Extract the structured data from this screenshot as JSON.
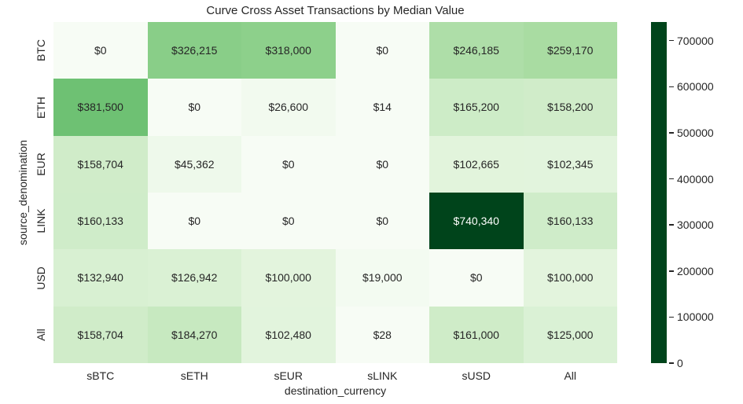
{
  "chart_data": {
    "type": "heatmap",
    "title": "Curve Cross Asset Transactions by Median Value",
    "xlabel": "destination_currency",
    "ylabel": "source_denomination",
    "x_categories": [
      "sBTC",
      "sETH",
      "sEUR",
      "sLINK",
      "sUSD",
      "All"
    ],
    "y_categories": [
      "BTC",
      "ETH",
      "EUR",
      "LINK",
      "USD",
      "All"
    ],
    "values": [
      [
        0,
        326215,
        318000,
        0,
        246185,
        259170
      ],
      [
        381500,
        0,
        26600,
        14,
        165200,
        158200
      ],
      [
        158704,
        45362,
        0,
        0,
        102665,
        102345
      ],
      [
        160133,
        0,
        0,
        0,
        740340,
        160133
      ],
      [
        132940,
        126942,
        100000,
        19000,
        0,
        100000
      ],
      [
        158704,
        184270,
        102480,
        28,
        161000,
        125000
      ]
    ],
    "annotations": [
      [
        "$0",
        "$326,215",
        "$318,000",
        "$0",
        "$246,185",
        "$259,170"
      ],
      [
        "$381,500",
        "$0",
        "$26,600",
        "$14",
        "$165,200",
        "$158,200"
      ],
      [
        "$158,704",
        "$45,362",
        "$0",
        "$0",
        "$102,665",
        "$102,345"
      ],
      [
        "$160,133",
        "$0",
        "$0",
        "$0",
        "$740,340",
        "$160,133"
      ],
      [
        "$132,940",
        "$126,942",
        "$100,000",
        "$19,000",
        "$0",
        "$100,000"
      ],
      [
        "$158,704",
        "$184,270",
        "$102,480",
        "$28",
        "$161,000",
        "$125,000"
      ]
    ],
    "vmin": 0,
    "vmax": 740340,
    "colormap": {
      "name": "Greens",
      "stops": [
        "#f7fcf5",
        "#e5f5e0",
        "#c7e9c0",
        "#a1d99b",
        "#74c476",
        "#41ab5d",
        "#238b45",
        "#006d2c",
        "#00441b"
      ]
    },
    "colorbar": {
      "tick_labels": [
        "0",
        "100000",
        "200000",
        "300000",
        "400000",
        "500000",
        "600000",
        "700000"
      ],
      "tick_values": [
        0,
        100000,
        200000,
        300000,
        400000,
        500000,
        600000,
        700000
      ],
      "legend_position": "right"
    },
    "grid": false,
    "annotation_text_colors": {
      "dark": "#262626",
      "light": "#ffffff"
    }
  }
}
